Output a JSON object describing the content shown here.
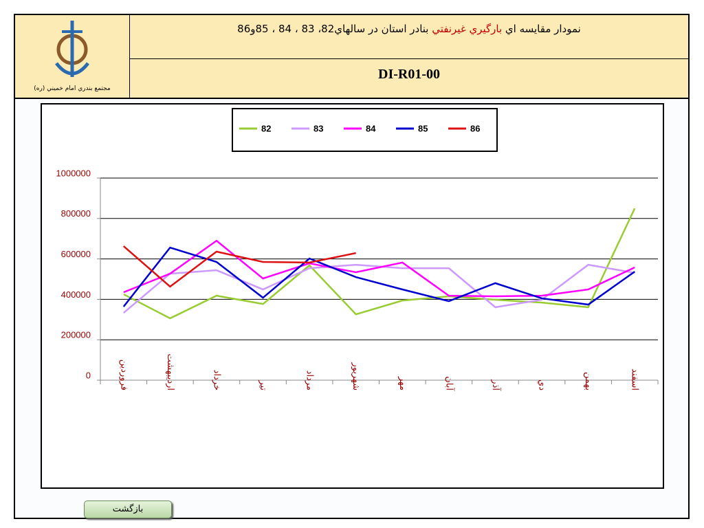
{
  "header": {
    "title_start": "نمودار مقايسه اي ",
    "title_highlight": "بارگيري غيرنفتي",
    "title_end": " بنادر استان در سالهاي82، 83 ، 84 ، 85و86",
    "code": "DI-R01-00",
    "logo_caption": "مجتمع بندري امام خميني (ره)"
  },
  "chart_data": {
    "type": "line",
    "categories": [
      "فروردين",
      "ارديبهشت",
      "خرداد",
      "تير",
      "مرداد",
      "شهريور",
      "مهر",
      "آبان",
      "آذر",
      "دي",
      "بهمن",
      "اسفند"
    ],
    "series": [
      {
        "name": "82",
        "color": "#99cc33",
        "values": [
          425000,
          306000,
          418000,
          377000,
          568000,
          326000,
          394000,
          415000,
          398000,
          384000,
          361000,
          850000
        ]
      },
      {
        "name": "83",
        "color": "#cc99ff",
        "values": [
          333000,
          527000,
          544000,
          449000,
          554000,
          571000,
          554000,
          554000,
          361000,
          398000,
          571000,
          531000
        ]
      },
      {
        "name": "84",
        "color": "#ff00ff",
        "values": [
          435000,
          527000,
          690000,
          503000,
          578000,
          534000,
          582000,
          418000,
          415000,
          418000,
          449000,
          558000
        ]
      },
      {
        "name": "85",
        "color": "#0000cc",
        "values": [
          364000,
          656000,
          585000,
          408000,
          602000,
          510000,
          449000,
          391000,
          480000,
          405000,
          374000,
          537000
        ]
      },
      {
        "name": "86",
        "color": "#dd1111",
        "values": [
          663000,
          463000,
          636000,
          585000,
          582000,
          629000,
          null,
          null,
          null,
          null,
          null,
          null
        ]
      }
    ],
    "ylim": [
      0,
      1000000
    ],
    "yticks": [
      0,
      200000,
      400000,
      600000,
      800000,
      1000000
    ],
    "grid": true,
    "legend": "top"
  },
  "button": {
    "label": "بازگشت"
  }
}
